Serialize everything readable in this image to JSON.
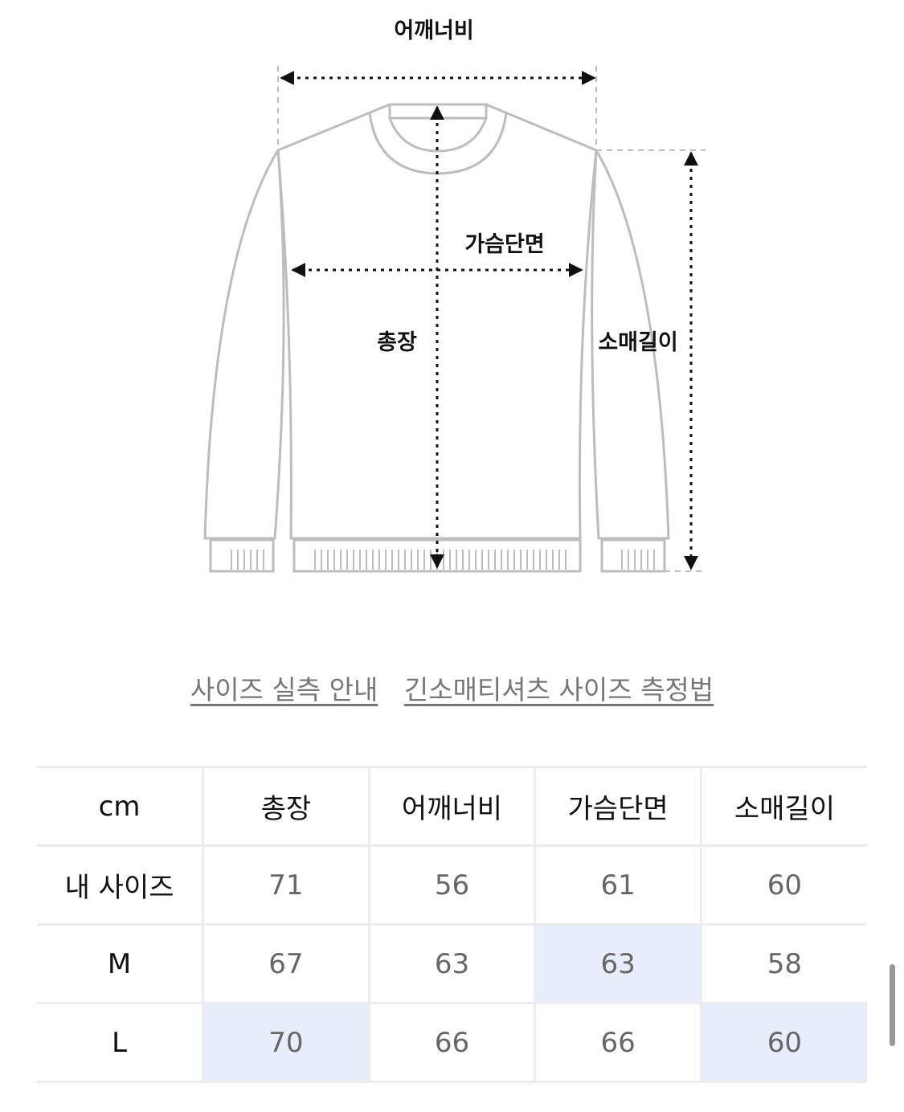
{
  "diagram": {
    "labels": {
      "shoulder": "어깨너비",
      "chest": "가슴단면",
      "length": "총장",
      "sleeve": "소매길이"
    },
    "line_color": "#bdbdbd",
    "arrow_color": "#111111"
  },
  "links": [
    {
      "label": "사이즈 실측 안내"
    },
    {
      "label": "긴소매티셔츠 사이즈 측정법"
    }
  ],
  "size_table": {
    "unit": "cm",
    "columns": [
      "총장",
      "어깨너비",
      "가슴단면",
      "소매길이"
    ],
    "rows": [
      {
        "label": "내 사이즈",
        "values": [
          "71",
          "56",
          "61",
          "60"
        ],
        "highlighted": [
          false,
          false,
          false,
          false
        ]
      },
      {
        "label": "M",
        "values": [
          "67",
          "63",
          "63",
          "58"
        ],
        "highlighted": [
          false,
          false,
          true,
          false
        ]
      },
      {
        "label": "L",
        "values": [
          "70",
          "66",
          "66",
          "60"
        ],
        "highlighted": [
          true,
          false,
          false,
          true
        ]
      }
    ],
    "highlight_color": "#e8edfb"
  }
}
